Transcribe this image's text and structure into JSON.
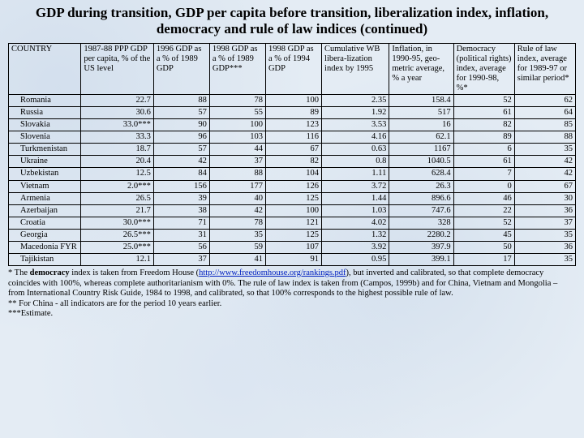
{
  "title": "GDP during transition, GDP per capita before transition, liberalization index, inflation, democracy and rule of law indices (continued)",
  "table": {
    "type": "table",
    "columns": [
      "COUNTRY",
      "1987-88 PPP GDP per capita, % of the US level",
      "1996 GDP as a % of 1989 GDP",
      "1998 GDP as a % of 1989 GDP***",
      "1998 GDP as a % of 1994 GDP",
      "Cumulative WB libera-lization index by 1995",
      "Inflation, in 1990-95, geo-metric average, % a year",
      "Democracy (political rights) index, average for 1990-98, %*",
      "Rule of law index, average for 1989-97 or similar period*"
    ],
    "rows": [
      [
        "Romania",
        "22.7",
        "88",
        "78",
        "100",
        "2.35",
        "158.4",
        "52",
        "62"
      ],
      [
        "Russia",
        "30.6",
        "57",
        "55",
        "89",
        "1.92",
        "517",
        "61",
        "64"
      ],
      [
        "Slovakia",
        "33.0***",
        "90",
        "100",
        "123",
        "3.53",
        "16",
        "82",
        "85"
      ],
      [
        "Slovenia",
        "33.3",
        "96",
        "103",
        "116",
        "4.16",
        "62.1",
        "89",
        "88"
      ],
      [
        "Turkmenistan",
        "18.7",
        "57",
        "44",
        "67",
        "0.63",
        "1167",
        "6",
        "35"
      ],
      [
        "Ukraine",
        "20.4",
        "42",
        "37",
        "82",
        "0.8",
        "1040.5",
        "61",
        "42"
      ],
      [
        "Uzbekistan",
        "12.5",
        "84",
        "88",
        "104",
        "1.11",
        "628.4",
        "7",
        "42"
      ],
      [
        "Vietnam",
        "2.0***",
        "156",
        "177",
        "126",
        "3.72",
        "26.3",
        "0",
        "67"
      ],
      [
        "Armenia",
        "26.5",
        "39",
        "40",
        "125",
        "1.44",
        "896.6",
        "46",
        "30"
      ],
      [
        "Azerbaijan",
        "21.7",
        "38",
        "42",
        "100",
        "1.03",
        "747.6",
        "22",
        "36"
      ],
      [
        "Croatia",
        "30.0***",
        "71",
        "78",
        "121",
        "4.02",
        "328",
        "52",
        "37"
      ],
      [
        "Georgia",
        "26.5***",
        "31",
        "35",
        "125",
        "1.32",
        "2280.2",
        "45",
        "35"
      ],
      [
        "Macedonia FYR",
        "25.0***",
        "56",
        "59",
        "107",
        "3.92",
        "397.9",
        "50",
        "36"
      ],
      [
        "Tajikistan",
        "12.1",
        "37",
        "41",
        "91",
        "0.95",
        "399.1",
        "17",
        "35"
      ]
    ]
  },
  "footnotes": {
    "f1a": "* The ",
    "f1b": "democracy",
    "f1c": " index is taken from Freedom House (",
    "f1link": "http://www.freedomhouse.org/rankings.pdf",
    "f1d": "), but inverted and calibrated, so that complete democracy coincides with 100%, whereas complete authoritarianism with 0%. The rule of law index is taken from (Campos, 1999b) and for China, Vietnam and Mongolia – from International Country Risk Guide, 1984 to 1998, and calibrated, so that 100% corresponds to the highest possible rule of law.",
    "f2": "** For China - all indicators are for the period 10 years earlier.",
    "f3": "***Estimate."
  }
}
